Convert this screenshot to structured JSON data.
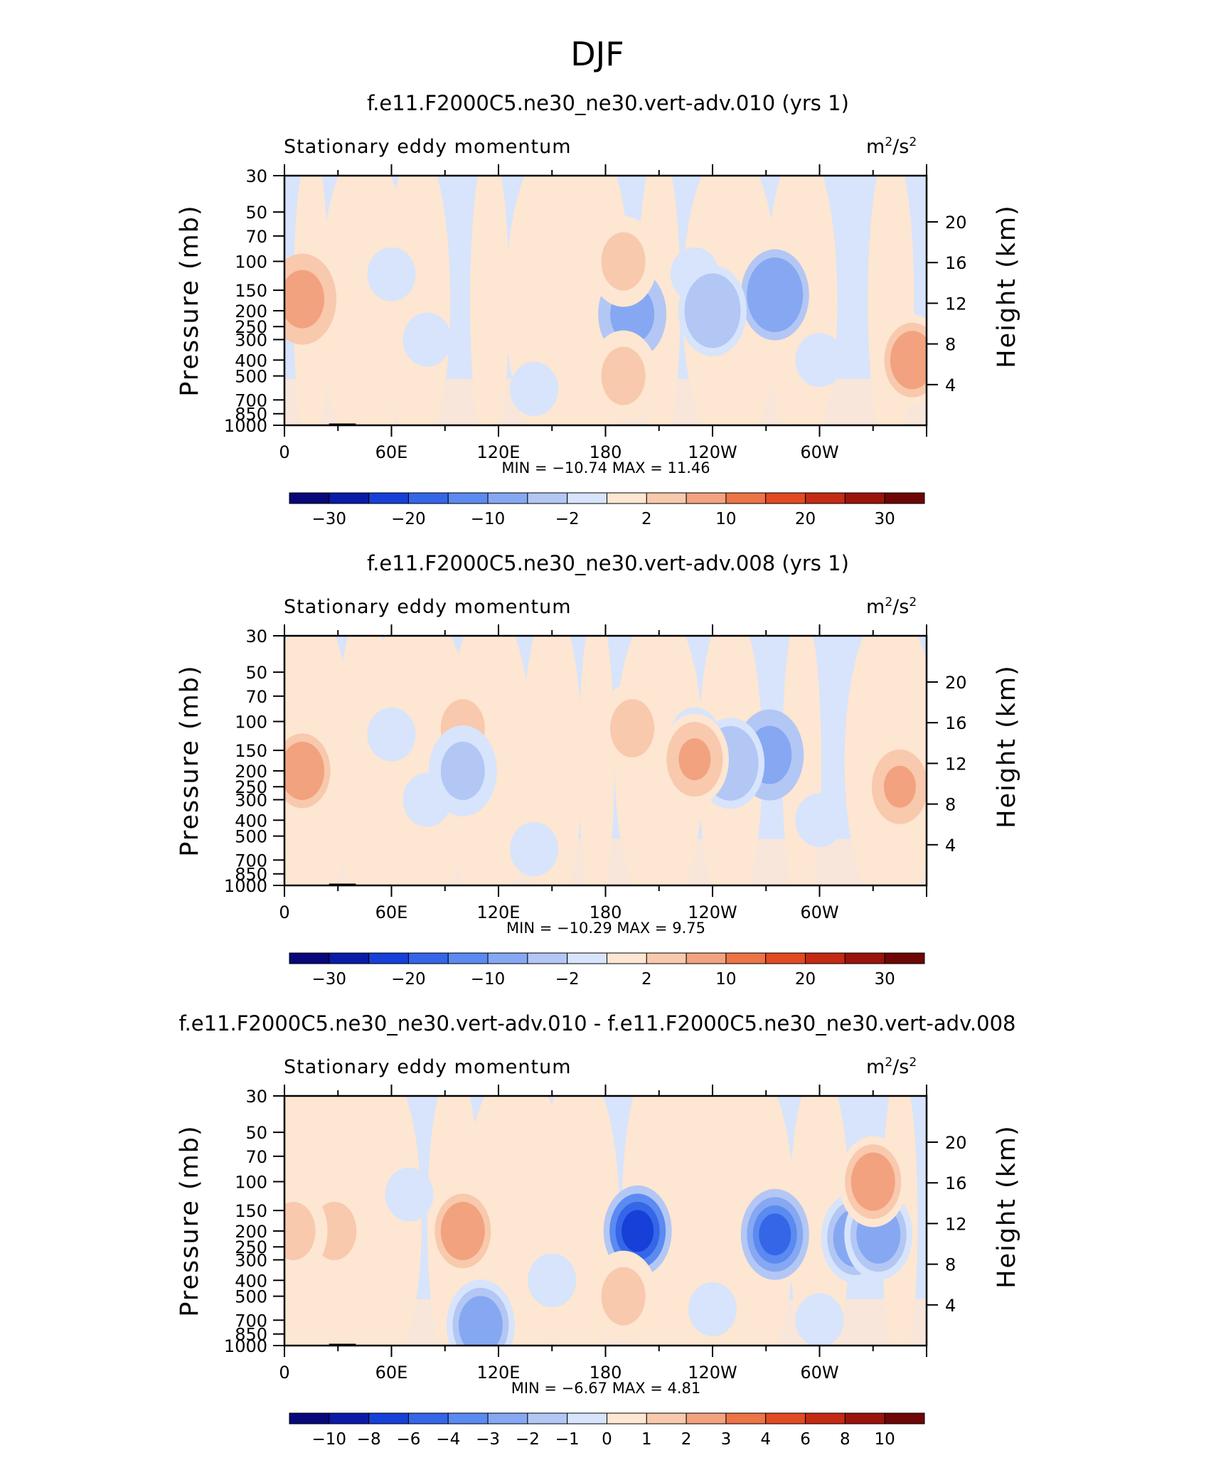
{
  "figure_title": "DJF",
  "chart_data": [
    {
      "type": "heatmap",
      "title": "f.e11.F2000C5.ne30_ne30.vert-adv.010 (yrs 1)",
      "subtitle_left": "Stationary eddy momentum",
      "units_base": "m",
      "units_exp1": "2",
      "units_mid": "/s",
      "units_exp2": "2",
      "ylabel": "Pressure (mb)",
      "ylabel_right": "Height (km)",
      "x_ticks": [
        "0",
        "60E",
        "120E",
        "180",
        "120W",
        "60W"
      ],
      "y_ticks": [
        "30",
        "50",
        "70",
        "100",
        "150",
        "200",
        "250",
        "300",
        "400",
        "500",
        "700",
        "850",
        "1000"
      ],
      "y_ticks_right": [
        "20",
        "16",
        "12",
        "8",
        "4"
      ],
      "ylim": [
        1000,
        30
      ],
      "xlim": [
        0,
        360
      ],
      "stats": "MIN = −10.74  MAX = 11.46",
      "min": -10.74,
      "max": 11.46,
      "levels": [
        "−30",
        "−20",
        "−10",
        "−2",
        "2",
        "10",
        "20",
        "30"
      ],
      "features": [
        {
          "lon": 10,
          "p": 170,
          "value": 9
        },
        {
          "lon": 195,
          "p": 210,
          "value": -9
        },
        {
          "lon": 275,
          "p": 160,
          "value": -10.7
        },
        {
          "lon": 240,
          "p": 200,
          "value": -5
        },
        {
          "lon": 352,
          "p": 400,
          "value": 8
        },
        {
          "lon": 190,
          "p": 100,
          "value": 4
        },
        {
          "lon": 190,
          "p": 500,
          "value": 4
        }
      ]
    },
    {
      "type": "heatmap",
      "title": "f.e11.F2000C5.ne30_ne30.vert-adv.008 (yrs 1)",
      "subtitle_left": "Stationary eddy momentum",
      "units_base": "m",
      "units_exp1": "2",
      "units_mid": "/s",
      "units_exp2": "2",
      "ylabel": "Pressure (mb)",
      "ylabel_right": "Height (km)",
      "x_ticks": [
        "0",
        "60E",
        "120E",
        "180",
        "120W",
        "60W"
      ],
      "y_ticks": [
        "30",
        "50",
        "70",
        "100",
        "150",
        "200",
        "250",
        "300",
        "400",
        "500",
        "700",
        "850",
        "1000"
      ],
      "y_ticks_right": [
        "20",
        "16",
        "12",
        "8",
        "4"
      ],
      "ylim": [
        1000,
        30
      ],
      "xlim": [
        0,
        360
      ],
      "stats": "MIN = −10.29  MAX =   9.75",
      "min": -10.29,
      "max": 9.75,
      "levels": [
        "−30",
        "−20",
        "−10",
        "−2",
        "2",
        "10",
        "20",
        "30"
      ],
      "features": [
        {
          "lon": 10,
          "p": 200,
          "value": 8
        },
        {
          "lon": 272,
          "p": 160,
          "value": -10.3
        },
        {
          "lon": 250,
          "p": 180,
          "value": -5
        },
        {
          "lon": 345,
          "p": 250,
          "value": 6
        },
        {
          "lon": 195,
          "p": 110,
          "value": 4
        },
        {
          "lon": 100,
          "p": 110,
          "value": 3
        },
        {
          "lon": 100,
          "p": 200,
          "value": -3
        },
        {
          "lon": 230,
          "p": 170,
          "value": 6
        }
      ]
    },
    {
      "type": "heatmap",
      "title": "f.e11.F2000C5.ne30_ne30.vert-adv.010 - f.e11.F2000C5.ne30_ne30.vert-adv.008",
      "subtitle_left": "Stationary eddy momentum",
      "units_base": "m",
      "units_exp1": "2",
      "units_mid": "/s",
      "units_exp2": "2",
      "ylabel": "Pressure (mb)",
      "ylabel_right": "Height (km)",
      "x_ticks": [
        "0",
        "60E",
        "120E",
        "180",
        "120W",
        "60W"
      ],
      "y_ticks": [
        "30",
        "50",
        "70",
        "100",
        "150",
        "200",
        "250",
        "300",
        "400",
        "500",
        "700",
        "850",
        "1000"
      ],
      "y_ticks_right": [
        "20",
        "16",
        "12",
        "8",
        "4"
      ],
      "ylim": [
        1000,
        30
      ],
      "xlim": [
        0,
        360
      ],
      "stats": "MIN =   −6.67  MAX =    4.81",
      "min": -6.67,
      "max": 4.81,
      "levels": [
        "−10",
        "−8",
        "−6",
        "−4",
        "−3",
        "−2",
        "−1",
        "0",
        "1",
        "2",
        "3",
        "4",
        "6",
        "8",
        "10"
      ],
      "features": [
        {
          "lon": 198,
          "p": 200,
          "value": -6.67
        },
        {
          "lon": 275,
          "p": 210,
          "value": -4.5
        },
        {
          "lon": 100,
          "p": 200,
          "value": 3
        },
        {
          "lon": 28,
          "p": 200,
          "value": 2
        },
        {
          "lon": 5,
          "p": 200,
          "value": 2
        },
        {
          "lon": 320,
          "p": 220,
          "value": -3
        },
        {
          "lon": 333,
          "p": 210,
          "value": -3
        },
        {
          "lon": 110,
          "p": 750,
          "value": -3
        },
        {
          "lon": 190,
          "p": 500,
          "value": 2
        },
        {
          "lon": 330,
          "p": 100,
          "value": 3
        }
      ]
    }
  ]
}
